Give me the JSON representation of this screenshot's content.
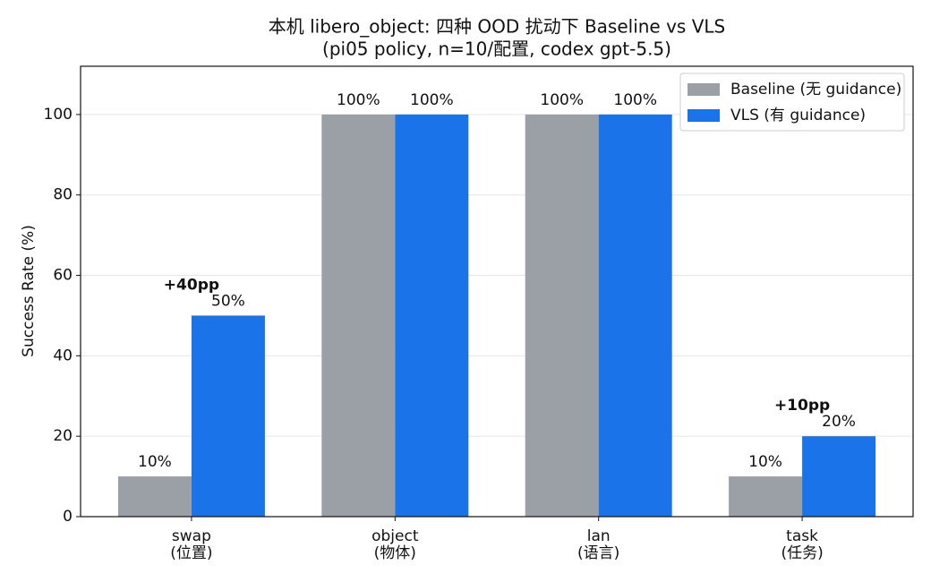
{
  "chart_data": {
    "type": "bar",
    "title": "本机 libero_object: 四种 OOD 扰动下 Baseline vs VLS",
    "subtitle": "(pi05 policy, n=10/配置, codex gpt-5.5)",
    "y_label": "Success Rate (%)",
    "categories": [
      "swap\n(位置)",
      "object\n(物体)",
      "lan\n(语言)",
      "task\n(任务)"
    ],
    "series": [
      {
        "name": "Baseline (无 guidance)",
        "color": "#9aa0a6",
        "values": [
          10,
          100,
          100,
          10
        ],
        "value_labels": [
          "10%",
          "100%",
          "100%",
          "10%"
        ]
      },
      {
        "name": "VLS (有 guidance)",
        "color": "#1a73e8",
        "values": [
          50,
          100,
          100,
          20
        ],
        "value_labels": [
          "50%",
          "100%",
          "100%",
          "20%"
        ]
      }
    ],
    "annotations": [
      {
        "text": "+40pp",
        "category": 0,
        "color": "#1a73e8"
      },
      {
        "text": "+10pp",
        "category": 3,
        "color": "#1a73e8"
      }
    ],
    "ylim": [
      0,
      112
    ],
    "yticks": [
      0,
      20,
      40,
      60,
      80,
      100
    ],
    "grid": true,
    "legend": "upper right"
  }
}
